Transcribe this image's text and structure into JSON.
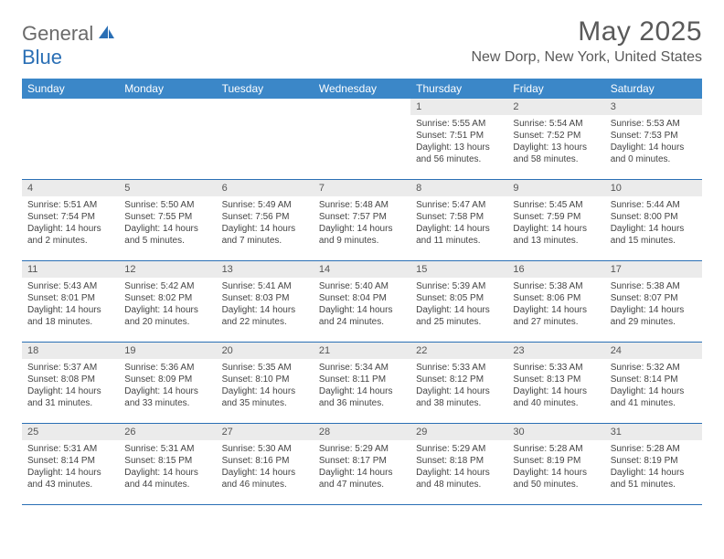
{
  "brand": {
    "part1": "General",
    "part2": "Blue"
  },
  "title": "May 2025",
  "location": "New Dorp, New York, United States",
  "colors": {
    "header_bg": "#3b87c8",
    "header_text": "#ffffff",
    "rule": "#2a6fb5",
    "daynum_bg": "#ebebeb",
    "body_text": "#444444",
    "title_text": "#5a5a5a",
    "brand_gray": "#6a6a6a",
    "brand_blue": "#2a6fb5"
  },
  "day_headers": [
    "Sunday",
    "Monday",
    "Tuesday",
    "Wednesday",
    "Thursday",
    "Friday",
    "Saturday"
  ],
  "weeks": [
    [
      {
        "day": "",
        "sunrise": "",
        "sunset": "",
        "daylight1": "",
        "daylight2": ""
      },
      {
        "day": "",
        "sunrise": "",
        "sunset": "",
        "daylight1": "",
        "daylight2": ""
      },
      {
        "day": "",
        "sunrise": "",
        "sunset": "",
        "daylight1": "",
        "daylight2": ""
      },
      {
        "day": "",
        "sunrise": "",
        "sunset": "",
        "daylight1": "",
        "daylight2": ""
      },
      {
        "day": "1",
        "sunrise": "Sunrise: 5:55 AM",
        "sunset": "Sunset: 7:51 PM",
        "daylight1": "Daylight: 13 hours",
        "daylight2": "and 56 minutes."
      },
      {
        "day": "2",
        "sunrise": "Sunrise: 5:54 AM",
        "sunset": "Sunset: 7:52 PM",
        "daylight1": "Daylight: 13 hours",
        "daylight2": "and 58 minutes."
      },
      {
        "day": "3",
        "sunrise": "Sunrise: 5:53 AM",
        "sunset": "Sunset: 7:53 PM",
        "daylight1": "Daylight: 14 hours",
        "daylight2": "and 0 minutes."
      }
    ],
    [
      {
        "day": "4",
        "sunrise": "Sunrise: 5:51 AM",
        "sunset": "Sunset: 7:54 PM",
        "daylight1": "Daylight: 14 hours",
        "daylight2": "and 2 minutes."
      },
      {
        "day": "5",
        "sunrise": "Sunrise: 5:50 AM",
        "sunset": "Sunset: 7:55 PM",
        "daylight1": "Daylight: 14 hours",
        "daylight2": "and 5 minutes."
      },
      {
        "day": "6",
        "sunrise": "Sunrise: 5:49 AM",
        "sunset": "Sunset: 7:56 PM",
        "daylight1": "Daylight: 14 hours",
        "daylight2": "and 7 minutes."
      },
      {
        "day": "7",
        "sunrise": "Sunrise: 5:48 AM",
        "sunset": "Sunset: 7:57 PM",
        "daylight1": "Daylight: 14 hours",
        "daylight2": "and 9 minutes."
      },
      {
        "day": "8",
        "sunrise": "Sunrise: 5:47 AM",
        "sunset": "Sunset: 7:58 PM",
        "daylight1": "Daylight: 14 hours",
        "daylight2": "and 11 minutes."
      },
      {
        "day": "9",
        "sunrise": "Sunrise: 5:45 AM",
        "sunset": "Sunset: 7:59 PM",
        "daylight1": "Daylight: 14 hours",
        "daylight2": "and 13 minutes."
      },
      {
        "day": "10",
        "sunrise": "Sunrise: 5:44 AM",
        "sunset": "Sunset: 8:00 PM",
        "daylight1": "Daylight: 14 hours",
        "daylight2": "and 15 minutes."
      }
    ],
    [
      {
        "day": "11",
        "sunrise": "Sunrise: 5:43 AM",
        "sunset": "Sunset: 8:01 PM",
        "daylight1": "Daylight: 14 hours",
        "daylight2": "and 18 minutes."
      },
      {
        "day": "12",
        "sunrise": "Sunrise: 5:42 AM",
        "sunset": "Sunset: 8:02 PM",
        "daylight1": "Daylight: 14 hours",
        "daylight2": "and 20 minutes."
      },
      {
        "day": "13",
        "sunrise": "Sunrise: 5:41 AM",
        "sunset": "Sunset: 8:03 PM",
        "daylight1": "Daylight: 14 hours",
        "daylight2": "and 22 minutes."
      },
      {
        "day": "14",
        "sunrise": "Sunrise: 5:40 AM",
        "sunset": "Sunset: 8:04 PM",
        "daylight1": "Daylight: 14 hours",
        "daylight2": "and 24 minutes."
      },
      {
        "day": "15",
        "sunrise": "Sunrise: 5:39 AM",
        "sunset": "Sunset: 8:05 PM",
        "daylight1": "Daylight: 14 hours",
        "daylight2": "and 25 minutes."
      },
      {
        "day": "16",
        "sunrise": "Sunrise: 5:38 AM",
        "sunset": "Sunset: 8:06 PM",
        "daylight1": "Daylight: 14 hours",
        "daylight2": "and 27 minutes."
      },
      {
        "day": "17",
        "sunrise": "Sunrise: 5:38 AM",
        "sunset": "Sunset: 8:07 PM",
        "daylight1": "Daylight: 14 hours",
        "daylight2": "and 29 minutes."
      }
    ],
    [
      {
        "day": "18",
        "sunrise": "Sunrise: 5:37 AM",
        "sunset": "Sunset: 8:08 PM",
        "daylight1": "Daylight: 14 hours",
        "daylight2": "and 31 minutes."
      },
      {
        "day": "19",
        "sunrise": "Sunrise: 5:36 AM",
        "sunset": "Sunset: 8:09 PM",
        "daylight1": "Daylight: 14 hours",
        "daylight2": "and 33 minutes."
      },
      {
        "day": "20",
        "sunrise": "Sunrise: 5:35 AM",
        "sunset": "Sunset: 8:10 PM",
        "daylight1": "Daylight: 14 hours",
        "daylight2": "and 35 minutes."
      },
      {
        "day": "21",
        "sunrise": "Sunrise: 5:34 AM",
        "sunset": "Sunset: 8:11 PM",
        "daylight1": "Daylight: 14 hours",
        "daylight2": "and 36 minutes."
      },
      {
        "day": "22",
        "sunrise": "Sunrise: 5:33 AM",
        "sunset": "Sunset: 8:12 PM",
        "daylight1": "Daylight: 14 hours",
        "daylight2": "and 38 minutes."
      },
      {
        "day": "23",
        "sunrise": "Sunrise: 5:33 AM",
        "sunset": "Sunset: 8:13 PM",
        "daylight1": "Daylight: 14 hours",
        "daylight2": "and 40 minutes."
      },
      {
        "day": "24",
        "sunrise": "Sunrise: 5:32 AM",
        "sunset": "Sunset: 8:14 PM",
        "daylight1": "Daylight: 14 hours",
        "daylight2": "and 41 minutes."
      }
    ],
    [
      {
        "day": "25",
        "sunrise": "Sunrise: 5:31 AM",
        "sunset": "Sunset: 8:14 PM",
        "daylight1": "Daylight: 14 hours",
        "daylight2": "and 43 minutes."
      },
      {
        "day": "26",
        "sunrise": "Sunrise: 5:31 AM",
        "sunset": "Sunset: 8:15 PM",
        "daylight1": "Daylight: 14 hours",
        "daylight2": "and 44 minutes."
      },
      {
        "day": "27",
        "sunrise": "Sunrise: 5:30 AM",
        "sunset": "Sunset: 8:16 PM",
        "daylight1": "Daylight: 14 hours",
        "daylight2": "and 46 minutes."
      },
      {
        "day": "28",
        "sunrise": "Sunrise: 5:29 AM",
        "sunset": "Sunset: 8:17 PM",
        "daylight1": "Daylight: 14 hours",
        "daylight2": "and 47 minutes."
      },
      {
        "day": "29",
        "sunrise": "Sunrise: 5:29 AM",
        "sunset": "Sunset: 8:18 PM",
        "daylight1": "Daylight: 14 hours",
        "daylight2": "and 48 minutes."
      },
      {
        "day": "30",
        "sunrise": "Sunrise: 5:28 AM",
        "sunset": "Sunset: 8:19 PM",
        "daylight1": "Daylight: 14 hours",
        "daylight2": "and 50 minutes."
      },
      {
        "day": "31",
        "sunrise": "Sunrise: 5:28 AM",
        "sunset": "Sunset: 8:19 PM",
        "daylight1": "Daylight: 14 hours",
        "daylight2": "and 51 minutes."
      }
    ]
  ]
}
